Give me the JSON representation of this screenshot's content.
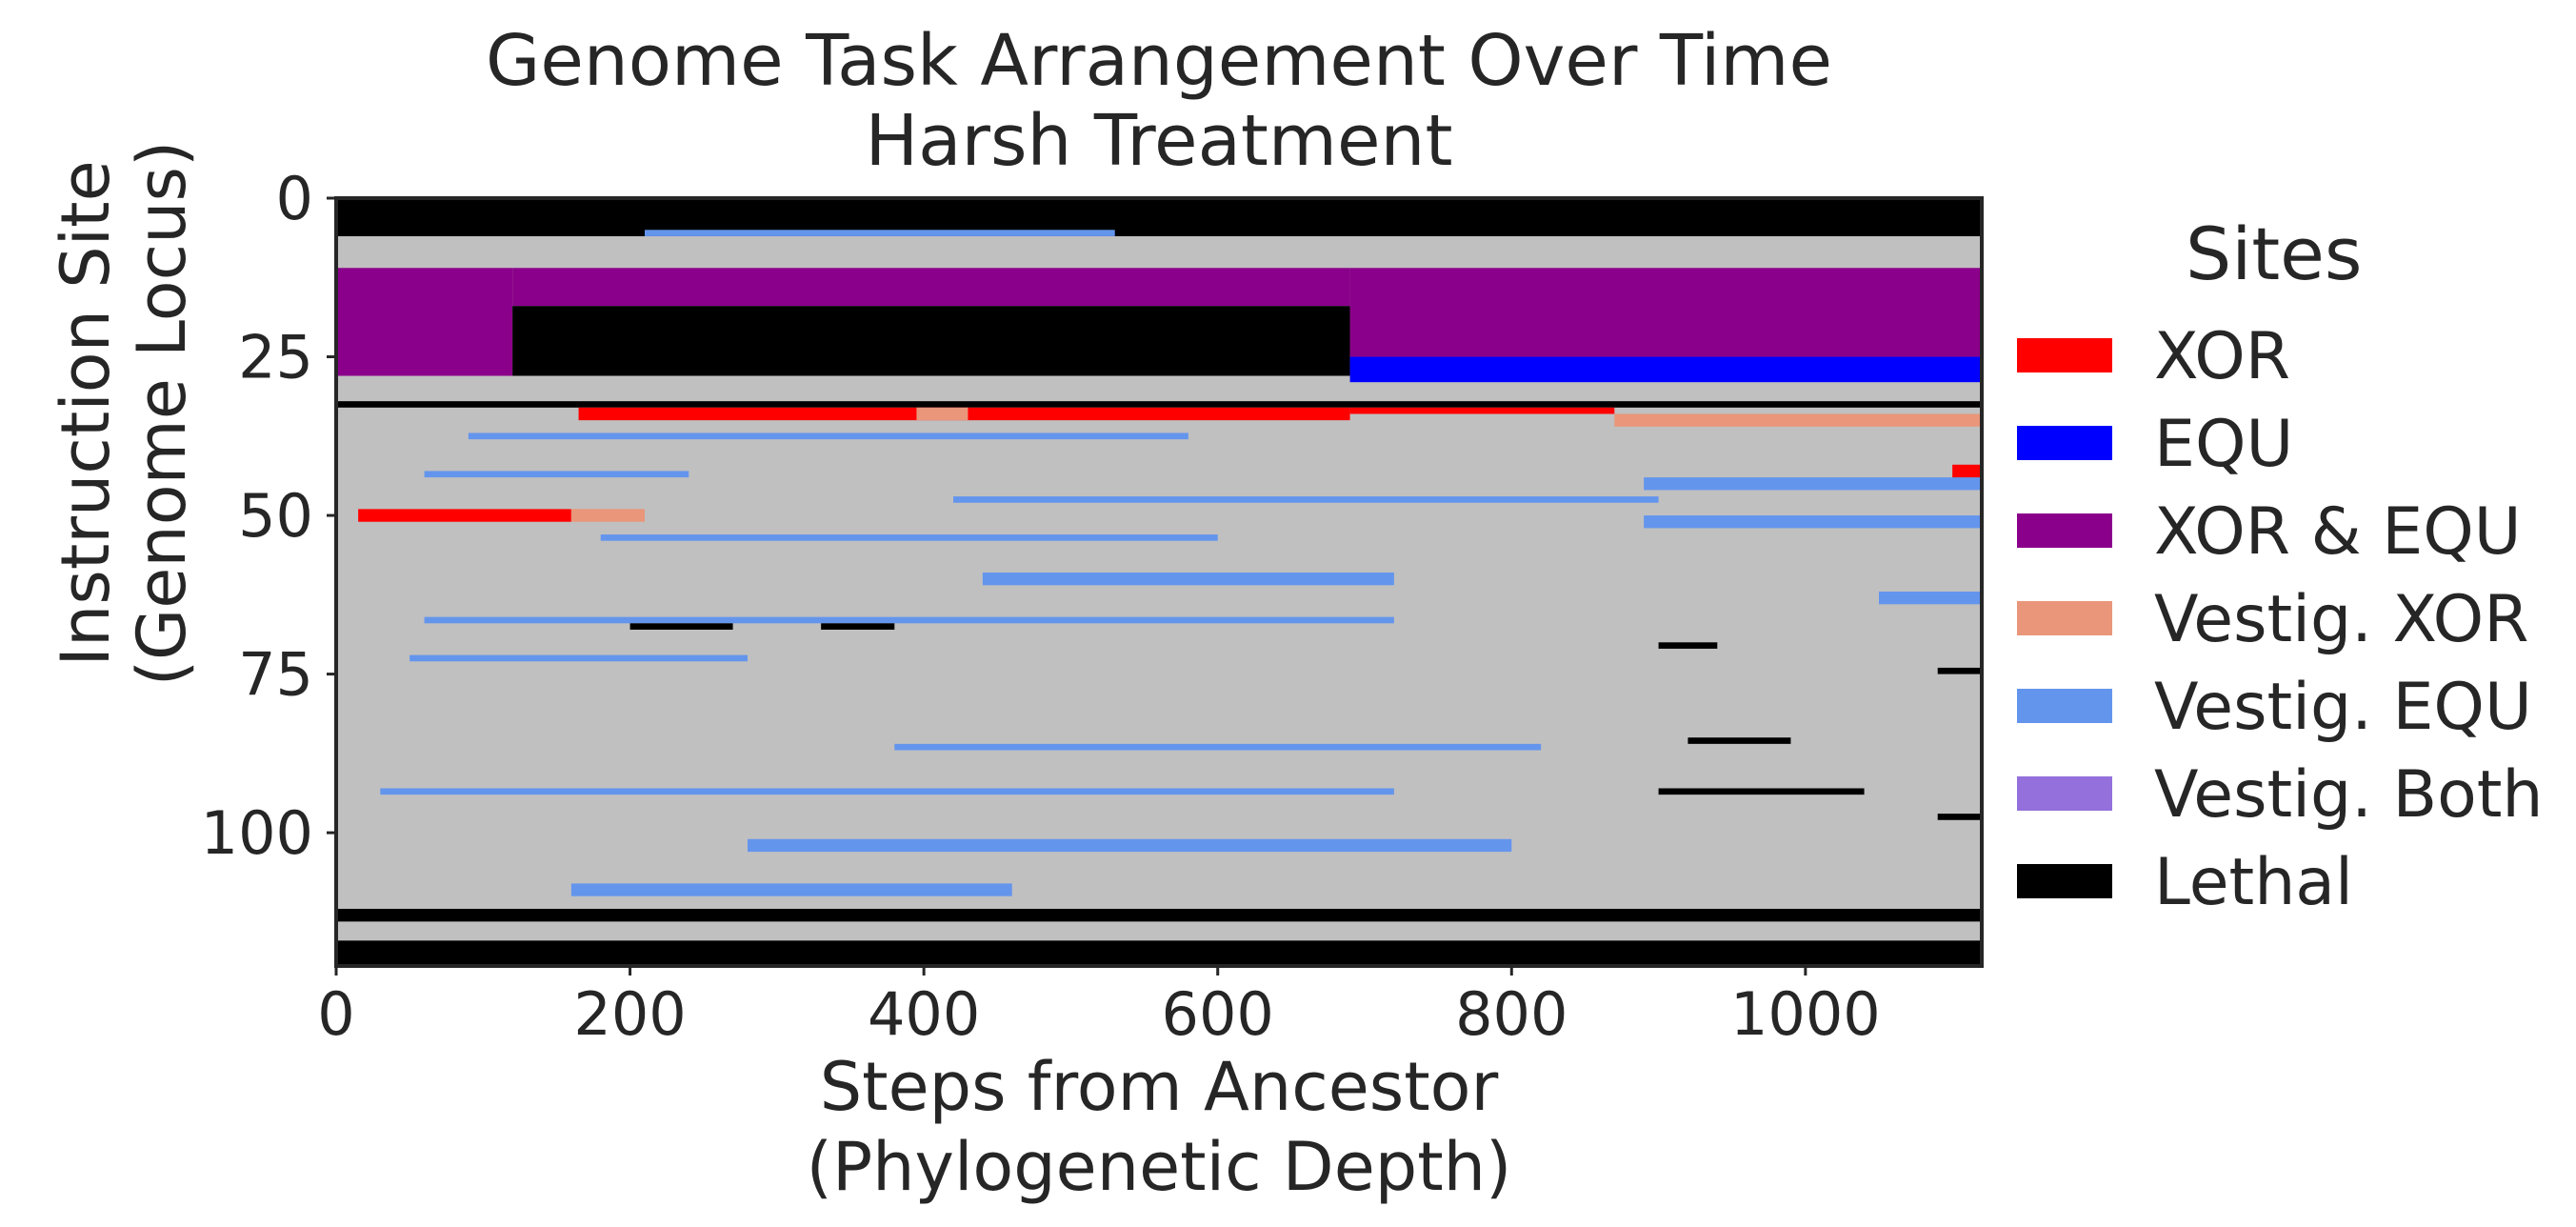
{
  "chart_data": {
    "type": "heatmap",
    "title": "Genome Task Arrangement Over Time",
    "subtitle": "Harsh Treatment",
    "xlabel": [
      "Steps from Ancestor",
      "(Phylogenetic Depth)"
    ],
    "ylabel": [
      "Instruction Site",
      "(Genome Locus)"
    ],
    "xlim": [
      0,
      1120
    ],
    "ylim": [
      121,
      0
    ],
    "xticks": [
      0,
      200,
      400,
      600,
      800,
      1000
    ],
    "yticks": [
      0,
      25,
      50,
      75,
      100
    ],
    "background_color": "#c0c0c0",
    "legend": {
      "title": "Sites",
      "placement": "right",
      "entries": [
        {
          "label": "XOR",
          "color": "#ff0000"
        },
        {
          "label": "EQU",
          "color": "#0000ff"
        },
        {
          "label": "XOR & EQU",
          "color": "#8b008b"
        },
        {
          "label": "Vestig. XOR",
          "color": "#e9967a"
        },
        {
          "label": "Vestig. EQU",
          "color": "#6495ed"
        },
        {
          "label": "Vestig. Both",
          "color": "#9370db"
        },
        {
          "label": "Lethal",
          "color": "#000000"
        }
      ]
    },
    "regions": [
      {
        "category": "Lethal",
        "x": [
          0,
          1120
        ],
        "y": [
          0,
          6
        ]
      },
      {
        "category": "Lethal",
        "x": [
          0,
          1120
        ],
        "y": [
          117,
          121
        ]
      },
      {
        "category": "Lethal",
        "x": [
          0,
          1120
        ],
        "y": [
          32,
          33
        ]
      },
      {
        "category": "Lethal",
        "x": [
          0,
          1120
        ],
        "y": [
          112,
          114
        ]
      },
      {
        "category": "XOR & EQU",
        "x": [
          0,
          120
        ],
        "y": [
          11,
          28
        ]
      },
      {
        "category": "XOR & EQU",
        "x": [
          120,
          690
        ],
        "y": [
          11,
          17
        ]
      },
      {
        "category": "XOR & EQU",
        "x": [
          690,
          1120
        ],
        "y": [
          11,
          25
        ]
      },
      {
        "category": "Lethal",
        "x": [
          120,
          690
        ],
        "y": [
          17,
          28
        ]
      },
      {
        "category": "XOR",
        "x": [
          165,
          690
        ],
        "y": [
          33,
          35
        ]
      },
      {
        "category": "Vestig. XOR",
        "x": [
          395,
          430
        ],
        "y": [
          33,
          35
        ]
      },
      {
        "category": "XOR",
        "x": [
          690,
          870
        ],
        "y": [
          33,
          34
        ]
      },
      {
        "category": "Vestig. XOR",
        "x": [
          870,
          1120
        ],
        "y": [
          34,
          36
        ]
      },
      {
        "category": "XOR",
        "x": [
          15,
          160
        ],
        "y": [
          49,
          51
        ]
      },
      {
        "category": "Vestig. XOR",
        "x": [
          160,
          210
        ],
        "y": [
          49,
          51
        ]
      },
      {
        "category": "EQU",
        "x": [
          690,
          1120
        ],
        "y": [
          25,
          29
        ]
      },
      {
        "category": "XOR",
        "x": [
          1100,
          1120
        ],
        "y": [
          42,
          45
        ]
      },
      {
        "category": "Vestig. EQU",
        "x": [
          210,
          530
        ],
        "y": [
          5,
          6
        ]
      },
      {
        "category": "Vestig. EQU",
        "x": [
          90,
          580
        ],
        "y": [
          37,
          38
        ]
      },
      {
        "category": "Vestig. EQU",
        "x": [
          60,
          240
        ],
        "y": [
          43,
          44
        ]
      },
      {
        "category": "Vestig. EQU",
        "x": [
          420,
          900
        ],
        "y": [
          47,
          48
        ]
      },
      {
        "category": "Vestig. EQU",
        "x": [
          180,
          600
        ],
        "y": [
          53,
          54
        ]
      },
      {
        "category": "Vestig. EQU",
        "x": [
          440,
          720
        ],
        "y": [
          59,
          61
        ]
      },
      {
        "category": "Vestig. EQU",
        "x": [
          60,
          720
        ],
        "y": [
          66,
          67
        ]
      },
      {
        "category": "Vestig. EQU",
        "x": [
          50,
          280
        ],
        "y": [
          72,
          73
        ]
      },
      {
        "category": "Vestig. EQU",
        "x": [
          380,
          820
        ],
        "y": [
          86,
          87
        ]
      },
      {
        "category": "Vestig. EQU",
        "x": [
          30,
          720
        ],
        "y": [
          93,
          94
        ]
      },
      {
        "category": "Vestig. EQU",
        "x": [
          280,
          800
        ],
        "y": [
          101,
          103
        ]
      },
      {
        "category": "Vestig. EQU",
        "x": [
          160,
          460
        ],
        "y": [
          108,
          110
        ]
      },
      {
        "category": "Vestig. EQU",
        "x": [
          890,
          1120
        ],
        "y": [
          44,
          46
        ]
      },
      {
        "category": "Vestig. EQU",
        "x": [
          890,
          1120
        ],
        "y": [
          50,
          52
        ]
      },
      {
        "category": "Vestig. EQU",
        "x": [
          1050,
          1120
        ],
        "y": [
          62,
          64
        ]
      },
      {
        "category": "Lethal",
        "x": [
          200,
          270
        ],
        "y": [
          67,
          68
        ]
      },
      {
        "category": "Lethal",
        "x": [
          330,
          380
        ],
        "y": [
          67,
          68
        ]
      },
      {
        "category": "Lethal",
        "x": [
          900,
          940
        ],
        "y": [
          70,
          71
        ]
      },
      {
        "category": "Lethal",
        "x": [
          900,
          1040
        ],
        "y": [
          93,
          94
        ]
      },
      {
        "category": "Lethal",
        "x": [
          1090,
          1120
        ],
        "y": [
          97,
          98
        ]
      },
      {
        "category": "Lethal",
        "x": [
          1090,
          1120
        ],
        "y": [
          74,
          75
        ]
      },
      {
        "category": "Lethal",
        "x": [
          920,
          990
        ],
        "y": [
          85,
          86
        ]
      }
    ]
  }
}
